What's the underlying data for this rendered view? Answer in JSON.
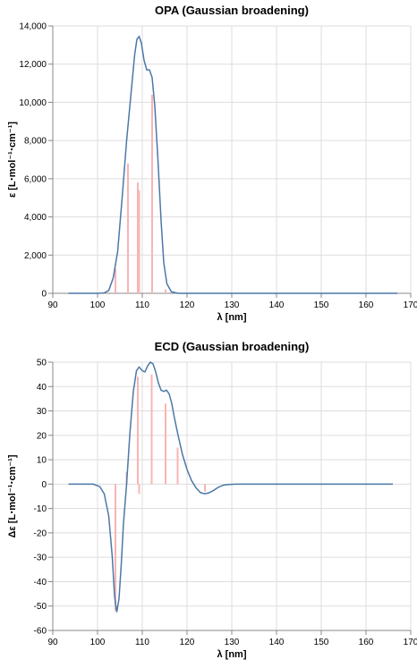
{
  "colors": {
    "curve": "#4c78a8",
    "sticks": "#f8b4b4",
    "grid": "#dddddd",
    "axis": "#888888"
  },
  "chart_data": [
    {
      "type": "line",
      "title": "OPA (Gaussian broadening)",
      "xlabel": "λ [nm]",
      "ylabel": "ε [L⋅mol⁻¹⋅cm⁻¹]",
      "xlim": [
        90,
        170
      ],
      "ylim": [
        0,
        14000
      ],
      "xticks": [
        90,
        100,
        110,
        120,
        130,
        140,
        150,
        160,
        170
      ],
      "yticks": [
        0,
        2000,
        4000,
        6000,
        8000,
        10000,
        12000,
        14000
      ],
      "xtick_labels": [
        "90",
        "100",
        "110",
        "120",
        "130",
        "140",
        "150",
        "160",
        "170"
      ],
      "ytick_labels": [
        "0",
        "2,000",
        "4,000",
        "6,000",
        "8,000",
        "10,000",
        "12,000",
        "14,000"
      ],
      "grid": true,
      "series": [
        {
          "kind": "line",
          "points": [
            [
              93.5,
              0
            ],
            [
              100,
              0
            ],
            [
              101.5,
              20
            ],
            [
              102.5,
              150
            ],
            [
              103.5,
              800
            ],
            [
              104.5,
              2200
            ],
            [
              105.5,
              5000
            ],
            [
              106.5,
              8000
            ],
            [
              107.5,
              10500
            ],
            [
              108.3,
              12500
            ],
            [
              108.8,
              13300
            ],
            [
              109.3,
              13450
            ],
            [
              109.8,
              13100
            ],
            [
              110.4,
              12200
            ],
            [
              111,
              11700
            ],
            [
              111.6,
              11700
            ],
            [
              112.2,
              11300
            ],
            [
              112.8,
              9800
            ],
            [
              113.5,
              7000
            ],
            [
              114.2,
              3800
            ],
            [
              114.8,
              1600
            ],
            [
              115.5,
              500
            ],
            [
              116.5,
              80
            ],
            [
              118,
              0
            ],
            [
              130,
              0
            ],
            [
              167,
              0
            ]
          ]
        },
        {
          "kind": "sticks",
          "points": [
            [
              104,
              1300
            ],
            [
              106.8,
              6800
            ],
            [
              109,
              5800
            ],
            [
              109.3,
              5400
            ],
            [
              112.2,
              10400
            ],
            [
              115.2,
              200
            ]
          ]
        }
      ]
    },
    {
      "type": "line",
      "title": "ECD (Gaussian broadening)",
      "xlabel": "λ [nm]",
      "ylabel": "Δε [L⋅mol⁻¹⋅cm⁻¹]",
      "xlim": [
        90,
        170
      ],
      "ylim": [
        -60,
        50
      ],
      "xticks": [
        90,
        100,
        110,
        120,
        130,
        140,
        150,
        160,
        170
      ],
      "yticks": [
        -60,
        -50,
        -40,
        -30,
        -20,
        -10,
        0,
        10,
        20,
        30,
        40,
        50
      ],
      "xtick_labels": [
        "90",
        "100",
        "110",
        "120",
        "130",
        "140",
        "150",
        "160",
        "170"
      ],
      "ytick_labels": [
        "-60",
        "-50",
        "-40",
        "-30",
        "-20",
        "-10",
        "0",
        "10",
        "20",
        "30",
        "40",
        "50"
      ],
      "grid": true,
      "series": [
        {
          "kind": "line",
          "points": [
            [
              93.5,
              0
            ],
            [
              99,
              0
            ],
            [
              100.5,
              -1
            ],
            [
              101.5,
              -4
            ],
            [
              102.5,
              -13
            ],
            [
              103.3,
              -30
            ],
            [
              103.8,
              -46
            ],
            [
              104.3,
              -52.5
            ],
            [
              104.8,
              -47
            ],
            [
              105.3,
              -33
            ],
            [
              105.8,
              -16
            ],
            [
              106.5,
              0
            ],
            [
              107.2,
              20
            ],
            [
              108,
              38
            ],
            [
              108.7,
              46.5
            ],
            [
              109.3,
              48
            ],
            [
              110,
              46.5
            ],
            [
              110.6,
              46
            ],
            [
              111.2,
              48.5
            ],
            [
              111.8,
              50
            ],
            [
              112.4,
              49.3
            ],
            [
              113,
              46
            ],
            [
              113.6,
              41.5
            ],
            [
              114.2,
              38.5
            ],
            [
              114.8,
              38
            ],
            [
              115.4,
              38.5
            ],
            [
              116,
              37
            ],
            [
              116.6,
              33
            ],
            [
              117.2,
              27
            ],
            [
              118,
              20
            ],
            [
              119,
              12
            ],
            [
              120,
              6
            ],
            [
              121,
              1.5
            ],
            [
              122,
              -1.5
            ],
            [
              123,
              -3.5
            ],
            [
              124,
              -4
            ],
            [
              125,
              -3.5
            ],
            [
              126,
              -2.5
            ],
            [
              127,
              -1.3
            ],
            [
              128,
              -0.5
            ],
            [
              129,
              -0.2
            ],
            [
              131,
              0
            ],
            [
              166,
              0
            ]
          ]
        },
        {
          "kind": "sticks",
          "points": [
            [
              104,
              -52
            ],
            [
              106.5,
              5
            ],
            [
              109,
              44
            ],
            [
              109.3,
              -4
            ],
            [
              112.1,
              45
            ],
            [
              115.2,
              33
            ],
            [
              117.9,
              15
            ],
            [
              124,
              -3
            ]
          ]
        }
      ]
    }
  ]
}
